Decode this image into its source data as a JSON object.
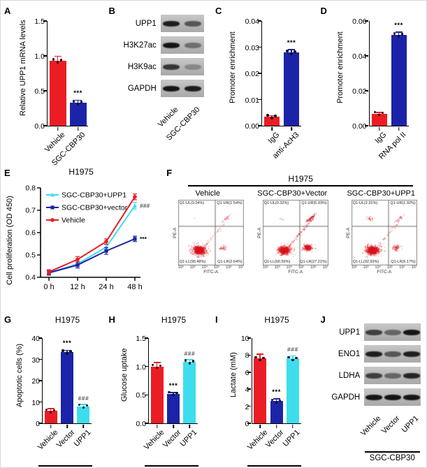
{
  "labels": {
    "A": "A",
    "B": "B",
    "C": "C",
    "D": "D",
    "E": "E",
    "F": "F",
    "G": "G",
    "H": "H",
    "I": "I",
    "J": "J"
  },
  "colors": {
    "red": "#EC1C24",
    "blue": "#1B24A8",
    "cyan": "#3EDDEE"
  },
  "chart_data": [
    {
      "id": "A",
      "type": "bar",
      "title": "",
      "ylabel": "Relative UPP1 mRNA levels",
      "ylim": [
        0,
        1.5
      ],
      "yticks": [
        "0.0",
        "0.5",
        "1.0",
        "1.5"
      ],
      "categories": [
        "Vehicle",
        "SGC-CBP30"
      ],
      "values": [
        0.93,
        0.33
      ],
      "errors": [
        0.07,
        0.04
      ],
      "colors": [
        "#EC1C24",
        "#1B24A8"
      ],
      "significance": [
        "",
        "***"
      ]
    },
    {
      "id": "C",
      "type": "bar",
      "title": "",
      "ylabel": "Promoter enrichment",
      "ylim": [
        0,
        0.04
      ],
      "yticks": [
        "0.00",
        "0.01",
        "0.02",
        "0.03",
        "0.04"
      ],
      "categories": [
        "IgG",
        "anti-AcH3"
      ],
      "values": [
        0.0035,
        0.028
      ],
      "errors": [
        0.0004,
        0.0012
      ],
      "colors": [
        "#EC1C24",
        "#1B24A8"
      ],
      "significance": [
        "",
        "***"
      ]
    },
    {
      "id": "D",
      "type": "bar",
      "title": "",
      "ylabel": "Promoter enrichment",
      "ylim": [
        0,
        0.06
      ],
      "yticks": [
        "0.00",
        "0.02",
        "0.04",
        "0.06"
      ],
      "categories": [
        "IgG",
        "RNA pol II"
      ],
      "values": [
        0.007,
        0.052
      ],
      "errors": [
        0.0008,
        0.0018
      ],
      "colors": [
        "#EC1C24",
        "#1B24A8"
      ],
      "significance": [
        "",
        "***"
      ]
    },
    {
      "id": "E",
      "type": "line",
      "title": "H1975",
      "ylabel": "Cell proliferation (OD 450)",
      "ylim": [
        0.4,
        0.8
      ],
      "yticks": [
        "0.4",
        "0.5",
        "0.6",
        "0.7",
        "0.8"
      ],
      "x_categories": [
        "0 h",
        "12 h",
        "24 h",
        "48 h"
      ],
      "legend_position": "top-left",
      "series": [
        {
          "name": "SGC-CBP30+UPP1",
          "color": "#3EDDEE",
          "marker": "triangle",
          "values": [
            0.42,
            0.46,
            0.535,
            0.72
          ],
          "errors": [
            0.01,
            0.012,
            0.012,
            0.015
          ],
          "annotation": "###"
        },
        {
          "name": "SGC-CBP30+vector",
          "color": "#1B24A8",
          "marker": "square",
          "values": [
            0.42,
            0.455,
            0.518,
            0.572
          ],
          "errors": [
            0.01,
            0.013,
            0.015,
            0.012
          ],
          "annotation": "***"
        },
        {
          "name": "Vehicle",
          "color": "#EC1C24",
          "marker": "circle",
          "values": [
            0.424,
            0.48,
            0.56,
            0.76
          ],
          "errors": [
            0.01,
            0.013,
            0.012,
            0.013
          ],
          "annotation": ""
        }
      ]
    },
    {
      "id": "F",
      "type": "flow",
      "title": "H1975",
      "xlabel": "FITC-A",
      "ylabel": "PE-A",
      "xticks": [
        "10²",
        "10³",
        "10⁴",
        "10⁵",
        "10⁶",
        "10⁷"
      ],
      "plots": [
        {
          "name": "Vehicle",
          "quadrants": {
            "UL": "Q1-UL(0.04%)",
            "UR": "Q1-UR(1.54%)",
            "LL": "Q1-LL(95.48%)",
            "LR": "Q1-LR(2.64%)"
          }
        },
        {
          "name": "SGC-CBP30+Vector",
          "quadrants": {
            "UL": "Q1-UL(0.32%)",
            "UR": "Q1-UR(5.93%)",
            "LL": "Q1-LL(66.55%)",
            "LR": "Q1-LR(27.21%)"
          }
        },
        {
          "name": "SGC-CBP30+UPP1",
          "quadrants": {
            "UL": "Q1-UL(2.31%)",
            "UR": "Q1-UR(1.92%)",
            "LL": "Q1-LL(92.93%)",
            "LR": "Q1-LR(5.17%)"
          }
        }
      ]
    },
    {
      "id": "G",
      "type": "bar",
      "title": "H1975",
      "ylabel": "Apoptotic cells (%)",
      "ylim": [
        0,
        40
      ],
      "yticks": [
        "0",
        "10",
        "20",
        "30",
        "40"
      ],
      "categories": [
        "Vehicle",
        "Vector",
        "UPP1"
      ],
      "values": [
        5.8,
        33.5,
        8.0
      ],
      "errors": [
        1.2,
        0.8,
        0.9
      ],
      "colors": [
        "#EC1C24",
        "#1B24A8",
        "#3EDDEE"
      ],
      "significance": [
        "",
        "***",
        "###"
      ],
      "group": {
        "label": "SGC-CBP30",
        "from": 1,
        "to": 2
      }
    },
    {
      "id": "H",
      "type": "bar",
      "title": "H1975",
      "ylabel": "Glucose uptake",
      "ylim": [
        0,
        1.5
      ],
      "yticks": [
        "0.0",
        "0.5",
        "1.0",
        "1.5"
      ],
      "categories": [
        "Vehicle",
        "Vector",
        "UPP1"
      ],
      "values": [
        1.0,
        0.52,
        1.08
      ],
      "errors": [
        0.07,
        0.025,
        0.045
      ],
      "colors": [
        "#EC1C24",
        "#1B24A8",
        "#3EDDEE"
      ],
      "significance": [
        "",
        "***",
        "###"
      ],
      "group": {
        "label": "SGC-CBP30",
        "from": 1,
        "to": 2
      }
    },
    {
      "id": "I",
      "type": "bar",
      "title": "H1975",
      "ylabel": "Lactate (mM)",
      "ylim": [
        0,
        10
      ],
      "yticks": [
        "0",
        "2",
        "4",
        "6",
        "8",
        "10"
      ],
      "categories": [
        "Vehicle",
        "Vector",
        "UPP1"
      ],
      "values": [
        7.6,
        2.6,
        7.6
      ],
      "errors": [
        0.55,
        0.3,
        0.35
      ],
      "colors": [
        "#EC1C24",
        "#1B24A8",
        "#3EDDEE"
      ],
      "significance": [
        "",
        "***",
        "###"
      ],
      "group": {
        "label": "SGC-CBP30",
        "from": 1,
        "to": 2
      }
    }
  ],
  "blots": [
    {
      "id": "B",
      "lanes": [
        "Vehicle",
        "SGC-CBP30"
      ],
      "rows": [
        {
          "name": "UPP1",
          "intensities": [
            0.95,
            0.6
          ]
        },
        {
          "name": "H3K27ac",
          "intensities": [
            1.0,
            0.45
          ]
        },
        {
          "name": "H3K9ac",
          "intensities": [
            0.8,
            0.3
          ]
        },
        {
          "name": "GAPDH",
          "intensities": [
            1.0,
            0.95
          ]
        }
      ]
    },
    {
      "id": "J",
      "lanes": [
        "Vehicle",
        "Vector",
        "UPP1"
      ],
      "group": {
        "label": "SGC-CBP30",
        "from": 1,
        "to": 2
      },
      "rows": [
        {
          "name": "UPP1",
          "intensities": [
            0.75,
            0.5,
            1.0
          ]
        },
        {
          "name": "ENO1",
          "intensities": [
            0.95,
            0.6,
            0.95
          ]
        },
        {
          "name": "LDHA",
          "intensities": [
            0.75,
            0.5,
            0.9
          ]
        },
        {
          "name": "GAPDH",
          "intensities": [
            1.0,
            1.0,
            1.0
          ]
        }
      ]
    }
  ]
}
